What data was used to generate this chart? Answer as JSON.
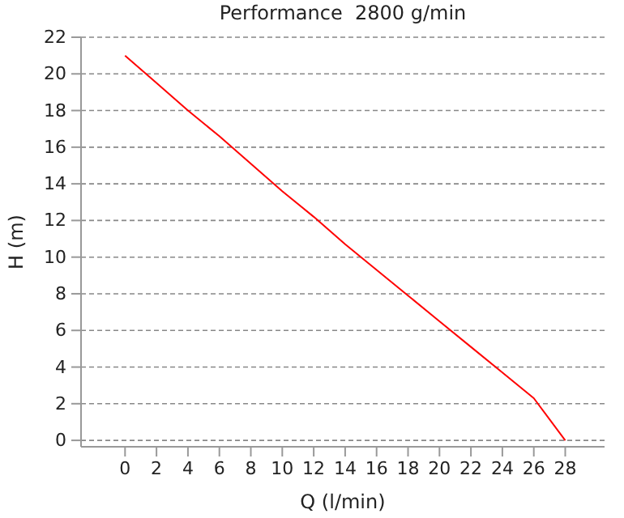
{
  "chart_data": {
    "type": "line",
    "title": "Performance  2800 g/min",
    "xlabel": "Q (l/min)",
    "ylabel": "H (m)",
    "x": [
      0,
      2,
      4,
      6,
      8,
      10,
      12,
      14,
      16,
      18,
      20,
      22,
      24,
      26,
      28
    ],
    "series": [
      {
        "color": "#ff0000",
        "values": [
          21,
          19.5,
          18,
          16.6,
          15.1,
          13.6,
          12.2,
          10.7,
          9.3,
          7.9,
          6.5,
          5.1,
          3.7,
          2.3,
          0
        ]
      }
    ],
    "xlim": [
      -2.8,
      30.5
    ],
    "ylim": [
      -0.35,
      22
    ],
    "xticks": [
      0,
      2,
      4,
      6,
      8,
      10,
      12,
      14,
      16,
      18,
      20,
      22,
      24,
      26,
      28
    ],
    "yticks": [
      0,
      2,
      4,
      6,
      8,
      10,
      12,
      14,
      16,
      18,
      20,
      22
    ],
    "grid": "y",
    "marker": "none",
    "line_style": "solid"
  }
}
